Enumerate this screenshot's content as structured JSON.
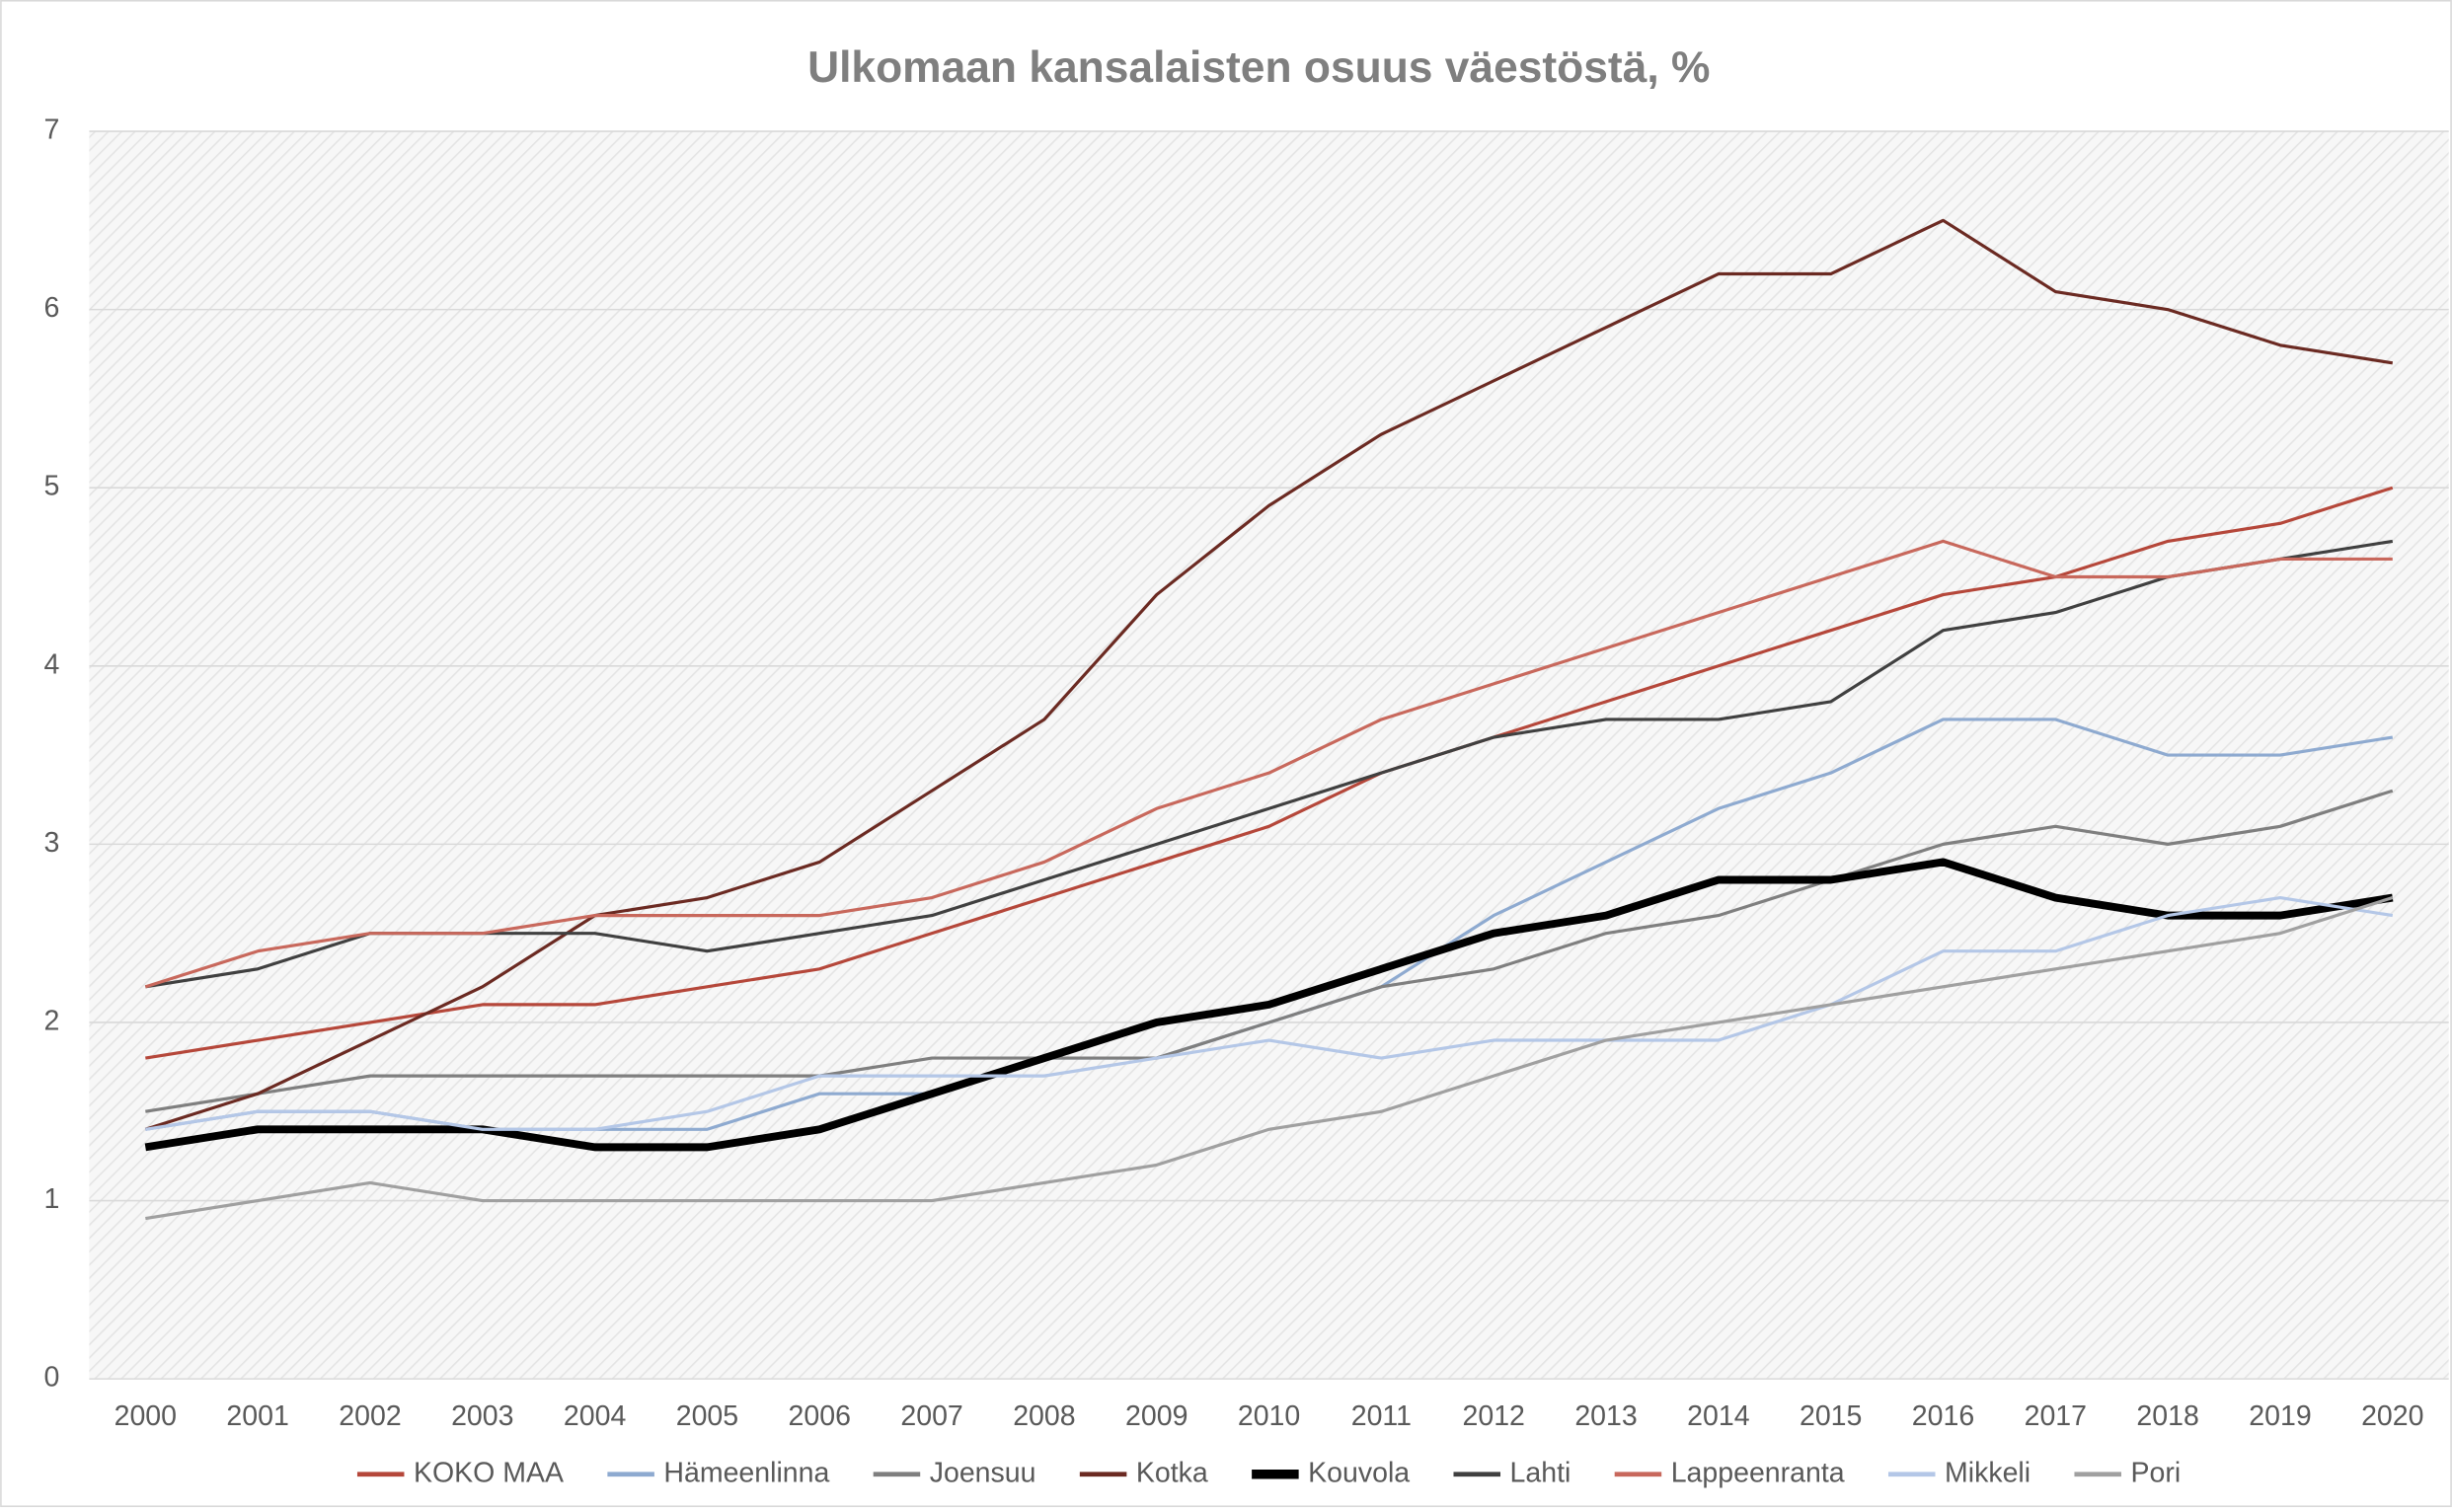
{
  "chart_data": {
    "type": "line",
    "title": "Ulkomaan kansalaisten osuus väestöstä, %",
    "categories": [
      "2000",
      "2001",
      "2002",
      "2003",
      "2004",
      "2005",
      "2006",
      "2007",
      "2008",
      "2009",
      "2010",
      "2011",
      "2012",
      "2013",
      "2014",
      "2015",
      "2016",
      "2017",
      "2018",
      "2019",
      "2020"
    ],
    "ylim": [
      0,
      7
    ],
    "yticks": [
      0,
      1,
      2,
      3,
      4,
      5,
      6,
      7
    ],
    "grid": true,
    "legend": "bottom",
    "series": [
      {
        "name": "KOKO MAA",
        "color": "#b5473a",
        "line_width": 2,
        "values": [
          1.8,
          1.9,
          2.0,
          2.1,
          2.1,
          2.2,
          2.3,
          2.5,
          2.7,
          2.9,
          3.1,
          3.4,
          3.6,
          3.8,
          4.0,
          4.2,
          4.4,
          4.5,
          4.7,
          4.8,
          5.0
        ]
      },
      {
        "name": "Hämeenlinna",
        "color": "#8eaad0",
        "line_width": 2,
        "values": [
          1.4,
          1.5,
          1.5,
          1.4,
          1.4,
          1.4,
          1.6,
          1.6,
          1.8,
          1.8,
          2.0,
          2.2,
          2.6,
          2.9,
          3.2,
          3.4,
          3.7,
          3.7,
          3.5,
          3.5,
          3.6
        ]
      },
      {
        "name": "Joensuu",
        "color": "#7f7f7f",
        "line_width": 2,
        "values": [
          1.5,
          1.6,
          1.7,
          1.7,
          1.7,
          1.7,
          1.7,
          1.8,
          1.8,
          1.8,
          2.0,
          2.2,
          2.3,
          2.5,
          2.6,
          2.8,
          3.0,
          3.1,
          3.0,
          3.1,
          3.3
        ]
      },
      {
        "name": "Kotka",
        "color": "#6b2a22",
        "line_width": 2,
        "values": [
          1.4,
          1.6,
          1.9,
          2.2,
          2.6,
          2.7,
          2.9,
          3.3,
          3.7,
          4.4,
          4.9,
          5.3,
          5.6,
          5.9,
          6.2,
          6.2,
          6.5,
          6.1,
          6.0,
          5.8,
          5.7
        ]
      },
      {
        "name": "Kouvola",
        "color": "#000000",
        "line_width": 5,
        "values": [
          1.3,
          1.4,
          1.4,
          1.4,
          1.3,
          1.3,
          1.4,
          1.6,
          1.8,
          2.0,
          2.1,
          2.3,
          2.5,
          2.6,
          2.8,
          2.8,
          2.9,
          2.7,
          2.6,
          2.6,
          2.7
        ]
      },
      {
        "name": "Lahti",
        "color": "#404040",
        "line_width": 2,
        "values": [
          2.2,
          2.3,
          2.5,
          2.5,
          2.5,
          2.4,
          2.5,
          2.6,
          2.8,
          3.0,
          3.2,
          3.4,
          3.6,
          3.7,
          3.7,
          3.8,
          4.2,
          4.3,
          4.5,
          4.6,
          4.7
        ]
      },
      {
        "name": "Lappeenranta",
        "color": "#c8685c",
        "line_width": 2,
        "values": [
          2.2,
          2.4,
          2.5,
          2.5,
          2.6,
          2.6,
          2.6,
          2.7,
          2.9,
          3.2,
          3.4,
          3.7,
          3.9,
          4.1,
          4.3,
          4.5,
          4.7,
          4.5,
          4.5,
          4.6,
          4.6
        ]
      },
      {
        "name": "Mikkeli",
        "color": "#b4c7e7",
        "line_width": 2,
        "values": [
          1.4,
          1.5,
          1.5,
          1.4,
          1.4,
          1.5,
          1.7,
          1.7,
          1.7,
          1.8,
          1.9,
          1.8,
          1.9,
          1.9,
          1.9,
          2.1,
          2.4,
          2.4,
          2.6,
          2.7,
          2.6
        ]
      },
      {
        "name": "Pori",
        "color": "#a0a0a0",
        "line_width": 2,
        "values": [
          0.9,
          1.0,
          1.1,
          1.0,
          1.0,
          1.0,
          1.0,
          1.0,
          1.1,
          1.2,
          1.4,
          1.5,
          1.7,
          1.9,
          2.0,
          2.1,
          2.2,
          2.3,
          2.4,
          2.5,
          2.7
        ]
      }
    ]
  }
}
